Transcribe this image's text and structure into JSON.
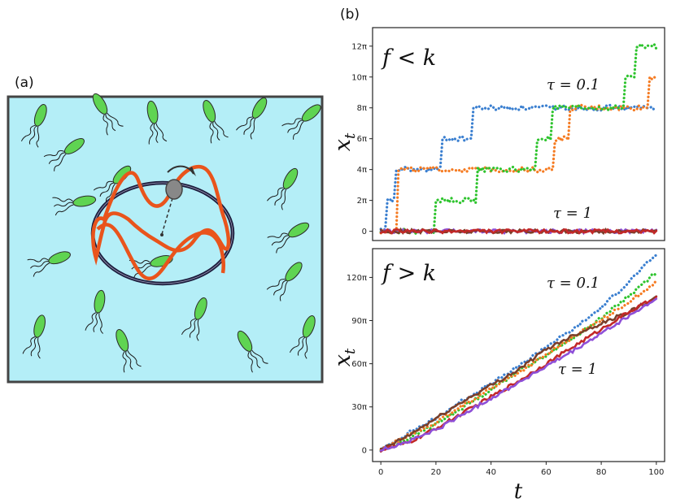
{
  "labels": {
    "panel_a": "(a)",
    "panel_b": "(b)"
  },
  "colors": {
    "water": "#b4eef7",
    "frame": "#444444",
    "bacteria": "#5fd452",
    "track": "#1c1c3c",
    "wave": "#e9541c"
  },
  "chart_data": [
    {
      "type": "line",
      "title": "f < k",
      "ylabel": "x_t",
      "yticks": [
        "0",
        "2π",
        "4π",
        "6π",
        "8π",
        "10π",
        "12π"
      ],
      "ylim_pi": [
        -0.6,
        13.2
      ],
      "xlim": [
        -3,
        103
      ],
      "annotations": [
        "τ = 0.1",
        "τ = 1"
      ],
      "series": [
        {
          "name": "tau0.1-blue",
          "color": "#3a7fd0",
          "style": "dotted",
          "steps": [
            [
              0,
              0
            ],
            [
              2,
              2
            ],
            [
              5,
              4
            ],
            [
              22,
              6
            ],
            [
              33,
              8
            ]
          ]
        },
        {
          "name": "tau0.1-orange",
          "color": "#f57b22",
          "style": "dotted",
          "steps": [
            [
              0,
              0
            ],
            [
              6,
              4
            ],
            [
              63,
              6
            ],
            [
              68,
              8
            ],
            [
              97,
              10
            ]
          ]
        },
        {
          "name": "tau0.1-green",
          "color": "#2ec42e",
          "style": "dotted",
          "steps": [
            [
              0,
              0
            ],
            [
              20,
              2
            ],
            [
              35,
              4
            ],
            [
              56,
              6
            ],
            [
              62,
              8
            ],
            [
              88,
              10
            ],
            [
              92,
              12
            ]
          ]
        },
        {
          "name": "tau1-purple",
          "color": "#8e4fd8",
          "style": "solid",
          "steps": [
            [
              0,
              0
            ]
          ]
        },
        {
          "name": "tau1-brown",
          "color": "#7b3f2a",
          "style": "solid",
          "steps": [
            [
              0,
              0
            ]
          ]
        },
        {
          "name": "tau1-red",
          "color": "#c22828",
          "style": "solid",
          "steps": [
            [
              0,
              0
            ]
          ]
        }
      ]
    },
    {
      "type": "line",
      "title": "f > k",
      "xlabel": "t",
      "ylabel": "x_t",
      "xticks": [
        "0",
        "20",
        "40",
        "60",
        "80",
        "100"
      ],
      "yticks": [
        "0",
        "30π",
        "60π",
        "90π",
        "120π"
      ],
      "ylim_pi": [
        -8,
        140
      ],
      "xlim": [
        -3,
        103
      ],
      "annotations": [
        "τ = 0.1",
        "τ = 1"
      ],
      "series": [
        {
          "name": "tau0.1-blue",
          "color": "#3a7fd0",
          "style": "dotted",
          "x": [
            0,
            10,
            20,
            30,
            40,
            50,
            60,
            70,
            80,
            90,
            100
          ],
          "y": [
            0,
            12,
            22,
            35,
            46,
            58,
            72,
            84,
            99,
            117,
            136
          ]
        },
        {
          "name": "tau0.1-green",
          "color": "#2ec42e",
          "style": "dotted",
          "x": [
            0,
            10,
            20,
            30,
            40,
            50,
            60,
            70,
            80,
            90,
            100
          ],
          "y": [
            0,
            8,
            18,
            30,
            42,
            55,
            66,
            78,
            92,
            107,
            124
          ]
        },
        {
          "name": "tau0.1-orange",
          "color": "#f57b22",
          "style": "dotted",
          "x": [
            0,
            10,
            20,
            30,
            40,
            50,
            60,
            70,
            80,
            90,
            100
          ],
          "y": [
            0,
            10,
            19,
            31,
            43,
            54,
            66,
            79,
            90,
            103,
            117
          ]
        },
        {
          "name": "tau1-brown",
          "color": "#7b3f2a",
          "style": "solid",
          "x": [
            0,
            10,
            20,
            30,
            40,
            50,
            60,
            70,
            80,
            90,
            100
          ],
          "y": [
            0,
            10,
            22,
            34,
            45,
            56,
            70,
            80,
            88,
            96,
            106
          ]
        },
        {
          "name": "tau1-red",
          "color": "#c22828",
          "style": "solid",
          "x": [
            0,
            10,
            20,
            30,
            40,
            50,
            60,
            70,
            80,
            90,
            100
          ],
          "y": [
            0,
            5,
            15,
            26,
            37,
            48,
            60,
            72,
            84,
            96,
            106
          ]
        },
        {
          "name": "tau1-purple",
          "color": "#8e4fd8",
          "style": "solid",
          "x": [
            0,
            10,
            20,
            30,
            40,
            50,
            60,
            70,
            80,
            90,
            100
          ],
          "y": [
            0,
            6,
            14,
            25,
            36,
            47,
            58,
            69,
            81,
            93,
            105
          ]
        }
      ]
    }
  ]
}
